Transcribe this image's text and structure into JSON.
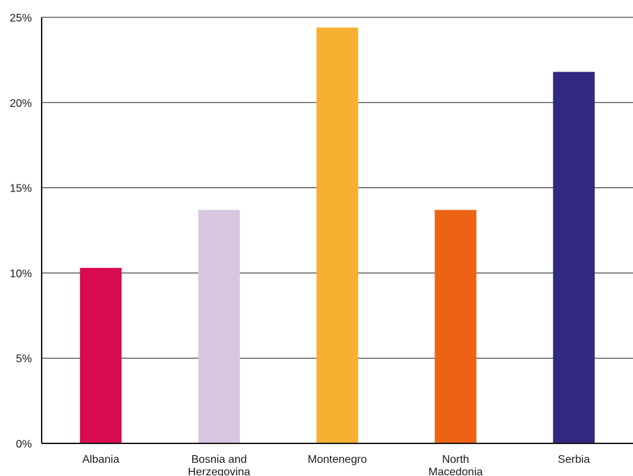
{
  "chart_data": {
    "type": "bar",
    "categories": [
      [
        "Albania"
      ],
      [
        "Bosnia and",
        "Herzegovina"
      ],
      [
        "Montenegro"
      ],
      [
        "North",
        "Macedonia"
      ],
      [
        "Serbia"
      ]
    ],
    "values": [
      10.3,
      13.7,
      24.4,
      13.7,
      21.8
    ],
    "colors": [
      "#d90b4f",
      "#d8c6e1",
      "#f7b032",
      "#ec6316",
      "#31287f"
    ],
    "ylim": [
      0,
      25
    ],
    "yticks": [
      0,
      5,
      10,
      15,
      20,
      25
    ],
    "ytick_labels": [
      "0%",
      "5%",
      "10%",
      "15%",
      "20%",
      "25%"
    ],
    "grid": true,
    "title": "",
    "xlabel": "",
    "ylabel": ""
  }
}
